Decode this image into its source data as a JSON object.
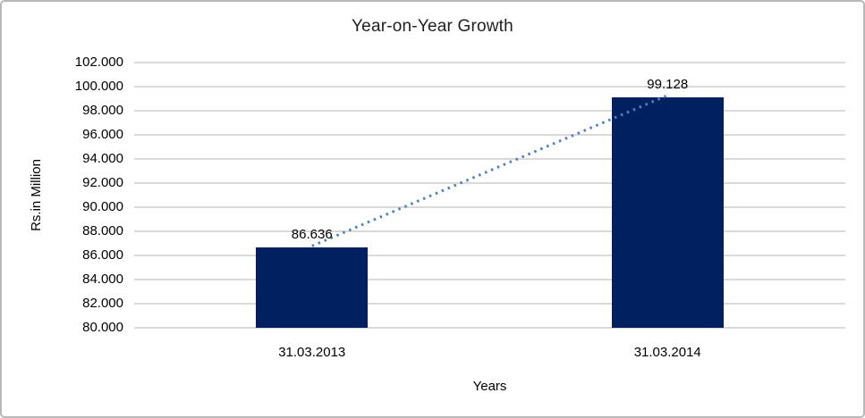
{
  "chart": {
    "title": "Year-on-Year Growth",
    "y_axis_title": "Rs.in Million",
    "x_axis_title": "Years"
  },
  "chart_data": {
    "type": "bar",
    "title": "Year-on-Year Growth",
    "xlabel": "Years",
    "ylabel": "Rs.in Million",
    "categories": [
      "31.03.2013",
      "31.03.2014"
    ],
    "values": [
      86636,
      99128
    ],
    "value_labels": [
      "86.636",
      "99.128"
    ],
    "ylim": [
      80000,
      102000
    ],
    "y_tick_step": 2000,
    "y_tick_values": [
      102000,
      100000,
      98000,
      96000,
      94000,
      92000,
      90000,
      88000,
      86000,
      84000,
      82000,
      80000
    ],
    "y_tick_labels": [
      "102.000",
      "100.000",
      "98.000",
      "96.000",
      "94.000",
      "92.000",
      "90.000",
      "88.000",
      "86.000",
      "84.000",
      "82.000",
      "80.000"
    ],
    "grid": true,
    "legend": "none",
    "colors": {
      "bar_fill": "#002060",
      "trendline": "#4f81bd",
      "gridline": "#d9d9d9",
      "text": "#000000"
    },
    "trendline": {
      "type": "linear",
      "style": "dotted",
      "connects": [
        "31.03.2013",
        "31.03.2014"
      ]
    }
  }
}
